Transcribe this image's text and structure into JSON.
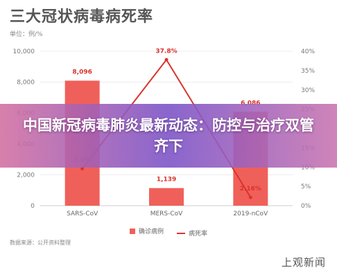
{
  "title": "三大冠状病毒病死率",
  "unit_label": "单位：例/%",
  "banner_text": "中国新冠病毒肺炎最新动态：防控与治疗双管齐下",
  "source": "数据来源：公开资料整理",
  "logo": "上观新闻",
  "colors": {
    "bar": "#f0605a",
    "line": "#d9342c",
    "label": "#d9342c"
  },
  "chart_data": {
    "type": "bar",
    "categories": [
      "SARS-CoV",
      "MERS-CoV",
      "2019-nCoV"
    ],
    "series": [
      {
        "name": "确诊病例",
        "type": "bar",
        "axis": "left",
        "values": [
          8096,
          1139,
          6086
        ],
        "labels": [
          "8,096",
          "1,139",
          "6,086"
        ]
      },
      {
        "name": "病死率",
        "type": "line",
        "axis": "right",
        "values": [
          9.6,
          37.8,
          2.16
        ],
        "labels": [
          "9.6%",
          "37.8%",
          "2.16%"
        ]
      }
    ],
    "y_left": {
      "min": 0,
      "max": 10000,
      "ticks": [
        0,
        2000,
        4000,
        6000,
        8000,
        10000
      ],
      "tick_labels": [
        "0",
        "2,000",
        "4,000",
        "6,000",
        "8,000",
        "10,000"
      ]
    },
    "y_right": {
      "min": 0,
      "max": 40,
      "ticks": [
        0,
        5,
        10,
        15,
        20,
        25,
        30,
        35,
        40
      ],
      "tick_labels": [
        "0%",
        "5%",
        "10%",
        "15%",
        "20%",
        "25%",
        "30%",
        "35%",
        "40%"
      ]
    },
    "grid": true,
    "legend_position": "bottom"
  }
}
